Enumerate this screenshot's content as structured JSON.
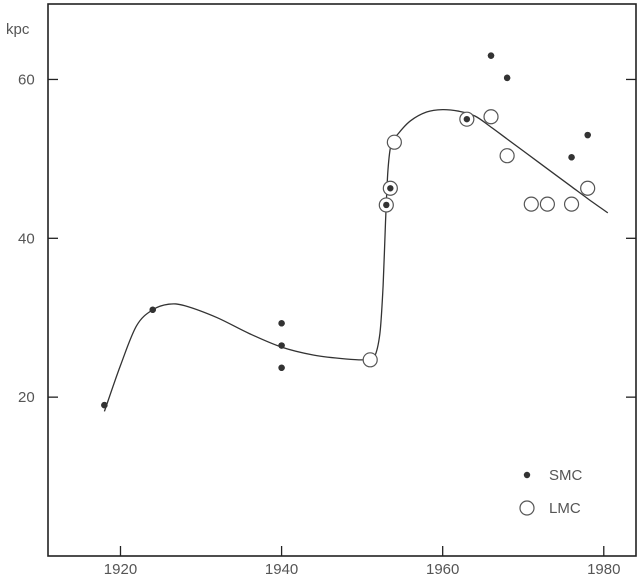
{
  "chart_data": {
    "type": "scatter",
    "title": "",
    "xlabel": "",
    "ylabel": "kpc",
    "xlim": [
      1911,
      1984
    ],
    "ylim": [
      0,
      69.5
    ],
    "x_ticks": [
      "1920",
      "1940",
      "1960",
      "1980"
    ],
    "y_ticks": [
      "20",
      "40",
      "60"
    ],
    "grid": false,
    "legend": {
      "position": "bottom-right"
    },
    "series": [
      {
        "name": "SMC",
        "marker": "filled-dot",
        "points": [
          [
            1918,
            19
          ],
          [
            1924,
            31
          ],
          [
            1940,
            29.3
          ],
          [
            1940,
            26.5
          ],
          [
            1940,
            23.7
          ],
          [
            1953,
            44.2
          ],
          [
            1953.5,
            46.3
          ],
          [
            1963,
            55
          ],
          [
            1966,
            63
          ],
          [
            1968,
            60.2
          ],
          [
            1976,
            50.2
          ],
          [
            1978,
            53
          ]
        ]
      },
      {
        "name": "LMC",
        "marker": "open-circle",
        "points": [
          [
            1951,
            24.7
          ],
          [
            1953,
            44.2
          ],
          [
            1953.5,
            46.3
          ],
          [
            1954,
            52.1
          ],
          [
            1963,
            55
          ],
          [
            1966,
            55.3
          ],
          [
            1968,
            50.4
          ],
          [
            1971,
            44.3
          ],
          [
            1973,
            44.3
          ],
          [
            1976,
            44.3
          ],
          [
            1978,
            46.3
          ]
        ]
      }
    ],
    "trend_curve": [
      [
        1918,
        18.2
      ],
      [
        1920,
        24
      ],
      [
        1922,
        29
      ],
      [
        1924,
        31
      ],
      [
        1926,
        31.7
      ],
      [
        1928,
        31.5
      ],
      [
        1932,
        30
      ],
      [
        1936,
        28
      ],
      [
        1940,
        26.3
      ],
      [
        1944,
        25.3
      ],
      [
        1948,
        24.8
      ],
      [
        1950.5,
        24.7
      ],
      [
        1951.5,
        25
      ],
      [
        1952.2,
        28
      ],
      [
        1952.6,
        34
      ],
      [
        1952.9,
        42
      ],
      [
        1953.2,
        48.5
      ],
      [
        1953.6,
        51.8
      ],
      [
        1954.5,
        53.2
      ],
      [
        1956,
        54.8
      ],
      [
        1958,
        55.9
      ],
      [
        1960,
        56.2
      ],
      [
        1962,
        56
      ],
      [
        1964,
        55.4
      ],
      [
        1966,
        54
      ],
      [
        1968,
        52.5
      ],
      [
        1970,
        51
      ],
      [
        1972,
        49.5
      ],
      [
        1974,
        48
      ],
      [
        1976,
        46.5
      ],
      [
        1978,
        45
      ],
      [
        1980.5,
        43.2
      ]
    ]
  }
}
